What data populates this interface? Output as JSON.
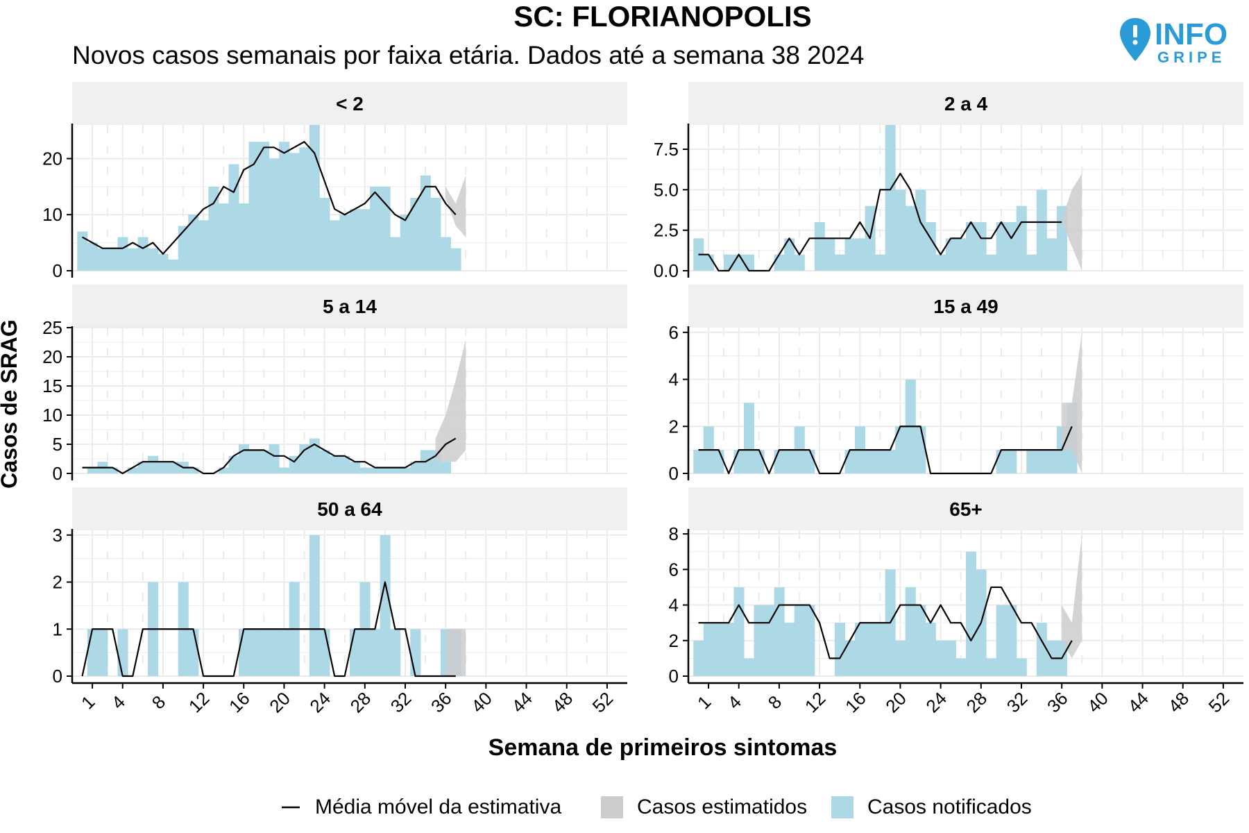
{
  "title": "SC: FLORIANOPOLIS",
  "subtitle": "Novos casos semanais por faixa etária. Dados até a semana 38 2024",
  "logo": {
    "word_top": "INFO",
    "word_bottom": "GRIPE",
    "icon": "map-pin-exclamation-icon",
    "color": "#2a9bd6"
  },
  "legend": {
    "moving_average": "Média móvel da estimativa",
    "estimated": "Casos estimatidos",
    "notified": "Casos notificados"
  },
  "colors": {
    "notified": "#add8e6",
    "estimated": "#cccccc",
    "line": "#000000",
    "strip": "#f0f0f0",
    "grid": "#ebebeb"
  },
  "chart_data": {
    "type": "bar",
    "xlabel": "Semana de primeiros sintomas",
    "ylabel": "Casos de SRAG",
    "x_ticks": [
      1,
      4,
      8,
      12,
      16,
      20,
      24,
      28,
      32,
      36,
      40,
      44,
      48,
      52
    ],
    "xlim": [
      -1,
      54
    ],
    "panels": [
      {
        "label": "< 2",
        "ylim": [
          0,
          26
        ],
        "y_ticks": [
          0,
          10,
          20
        ],
        "y_tick_labels": [
          "0",
          "10",
          "20"
        ],
        "notified": [
          7,
          5,
          4,
          4,
          6,
          4,
          6,
          4,
          3,
          2,
          8,
          10,
          9,
          15,
          12,
          19,
          12,
          23,
          23,
          20,
          23,
          21,
          22,
          26,
          13,
          9,
          10,
          11,
          11,
          15,
          15,
          6,
          10,
          13,
          17,
          13,
          6,
          4
        ],
        "moving_average": [
          6,
          5,
          4,
          4,
          4,
          5,
          4,
          5,
          3,
          5,
          7,
          9,
          11,
          12,
          15,
          14,
          18,
          19,
          22,
          22,
          21,
          22,
          23,
          21,
          16,
          11,
          10,
          11,
          12,
          14,
          12,
          10,
          9,
          12,
          15,
          15,
          12,
          10
        ],
        "estimated_band": {
          "weeks": [
            36,
            37,
            38
          ],
          "low": [
            13,
            8,
            6
          ],
          "high": [
            15,
            12,
            17
          ]
        }
      },
      {
        "label": "2 a 4",
        "ylim": [
          0,
          9
        ],
        "y_ticks": [
          0,
          2.5,
          5,
          7.5
        ],
        "y_tick_labels": [
          "0.0",
          "2.5",
          "5.0",
          "7.5"
        ],
        "notified": [
          2,
          1,
          0,
          1,
          1,
          1,
          0,
          0,
          1,
          2,
          1,
          0,
          3,
          2,
          1,
          2,
          2,
          4,
          1,
          9,
          5,
          4,
          5,
          3,
          1,
          2,
          2,
          3,
          3,
          1,
          3,
          3,
          4,
          1,
          5,
          2,
          4,
          0
        ],
        "moving_average": [
          1,
          1,
          0,
          0,
          1,
          0,
          0,
          0,
          1,
          2,
          1,
          2,
          2,
          2,
          2,
          2,
          3,
          2,
          5,
          5,
          6,
          5,
          3,
          2,
          1,
          2,
          2,
          3,
          2,
          2,
          3,
          2,
          3,
          3,
          3,
          3,
          3,
          null
        ],
        "estimated_band": {
          "weeks": [
            36,
            37,
            38
          ],
          "low": [
            3,
            1.5,
            0
          ],
          "high": [
            3.2,
            5,
            6
          ]
        }
      },
      {
        "label": "5 a 14",
        "ylim": [
          0,
          25
        ],
        "y_ticks": [
          0,
          5,
          10,
          15,
          20,
          25
        ],
        "y_tick_labels": [
          "0",
          "5",
          "10",
          "15",
          "20",
          "25"
        ],
        "notified": [
          0,
          1,
          2,
          1,
          0,
          1,
          2,
          3,
          2,
          2,
          2,
          1,
          0,
          0,
          1,
          3,
          5,
          4,
          4,
          5,
          1,
          3,
          5,
          6,
          4,
          3,
          3,
          2,
          1,
          1,
          1,
          1,
          1,
          2,
          4,
          4,
          2,
          0
        ],
        "moving_average": [
          1,
          1,
          1,
          1,
          0,
          1,
          2,
          2,
          2,
          2,
          1,
          1,
          0,
          0,
          1,
          3,
          4,
          4,
          4,
          3,
          3,
          2,
          4,
          5,
          4,
          3,
          3,
          2,
          2,
          1,
          1,
          1,
          1,
          2,
          2,
          3,
          5,
          6
        ],
        "estimated_band": {
          "weeks": [
            35,
            36,
            37,
            38
          ],
          "low": [
            2,
            2,
            2,
            4
          ],
          "high": [
            6,
            10,
            16,
            23
          ]
        }
      },
      {
        "label": "15 a 49",
        "ylim": [
          0,
          6.2
        ],
        "y_ticks": [
          0,
          2,
          4,
          6
        ],
        "y_tick_labels": [
          "0",
          "2",
          "4",
          "6"
        ],
        "notified": [
          1,
          2,
          1,
          0,
          1,
          3,
          1,
          0,
          1,
          1,
          2,
          1,
          0,
          0,
          0,
          1,
          2,
          1,
          1,
          1,
          2,
          4,
          2,
          0,
          0,
          0,
          0,
          0,
          0,
          0,
          1,
          1,
          0,
          1,
          1,
          1,
          2,
          3
        ],
        "moving_average": [
          1,
          1,
          1,
          0,
          1,
          1,
          1,
          0,
          1,
          1,
          1,
          1,
          0,
          0,
          0,
          1,
          1,
          1,
          1,
          1,
          2,
          2,
          2,
          0,
          0,
          0,
          0,
          0,
          0,
          0,
          1,
          1,
          1,
          1,
          1,
          1,
          1,
          2
        ],
        "estimated_band": {
          "weeks": [
            36,
            37,
            38
          ],
          "low": [
            1,
            1,
            0
          ],
          "high": [
            3,
            3,
            6
          ]
        }
      },
      {
        "label": "50 a 64",
        "ylim": [
          0,
          3.1
        ],
        "y_ticks": [
          0,
          1,
          2,
          3
        ],
        "y_tick_labels": [
          "0",
          "1",
          "2",
          "3"
        ],
        "notified": [
          0,
          1,
          1,
          0,
          1,
          0,
          0,
          2,
          0,
          0,
          2,
          1,
          0,
          0,
          0,
          0,
          1,
          1,
          1,
          1,
          1,
          2,
          0,
          3,
          1,
          0,
          0,
          1,
          2,
          1,
          3,
          1,
          0,
          1,
          0,
          0,
          1,
          1
        ],
        "moving_average": [
          0,
          1,
          1,
          1,
          0,
          0,
          1,
          1,
          1,
          1,
          1,
          1,
          0,
          0,
          0,
          0,
          1,
          1,
          1,
          1,
          1,
          1,
          1,
          1,
          1,
          0,
          0,
          1,
          1,
          1,
          2,
          1,
          1,
          0,
          0,
          0,
          0,
          0
        ],
        "estimated_band": {
          "weeks": [
            36,
            37,
            38
          ],
          "low": [
            0,
            0,
            0
          ],
          "high": [
            1,
            1,
            1
          ]
        }
      },
      {
        "label": "65+",
        "ylim": [
          0,
          8.2
        ],
        "y_ticks": [
          0,
          2,
          4,
          6,
          8
        ],
        "y_tick_labels": [
          "0",
          "2",
          "4",
          "6",
          "8"
        ],
        "notified": [
          2,
          3,
          3,
          3,
          5,
          1,
          4,
          4,
          5,
          3,
          4,
          4,
          0,
          0,
          3,
          2,
          3,
          3,
          3,
          6,
          2,
          5,
          4,
          3,
          2,
          2,
          1,
          7,
          6,
          1,
          4,
          4,
          1,
          0,
          3,
          2,
          2,
          0
        ],
        "moving_average": [
          3,
          3,
          3,
          3,
          4,
          3,
          3,
          3,
          4,
          4,
          4,
          4,
          3,
          1,
          1,
          2,
          3,
          3,
          3,
          3,
          4,
          4,
          4,
          3,
          4,
          3,
          3,
          2,
          3,
          5,
          5,
          4,
          3,
          3,
          2,
          1,
          1,
          2
        ],
        "estimated_band": {
          "weeks": [
            36,
            37,
            38
          ],
          "low": [
            2,
            1,
            2
          ],
          "high": [
            4,
            3,
            8
          ]
        }
      }
    ]
  }
}
